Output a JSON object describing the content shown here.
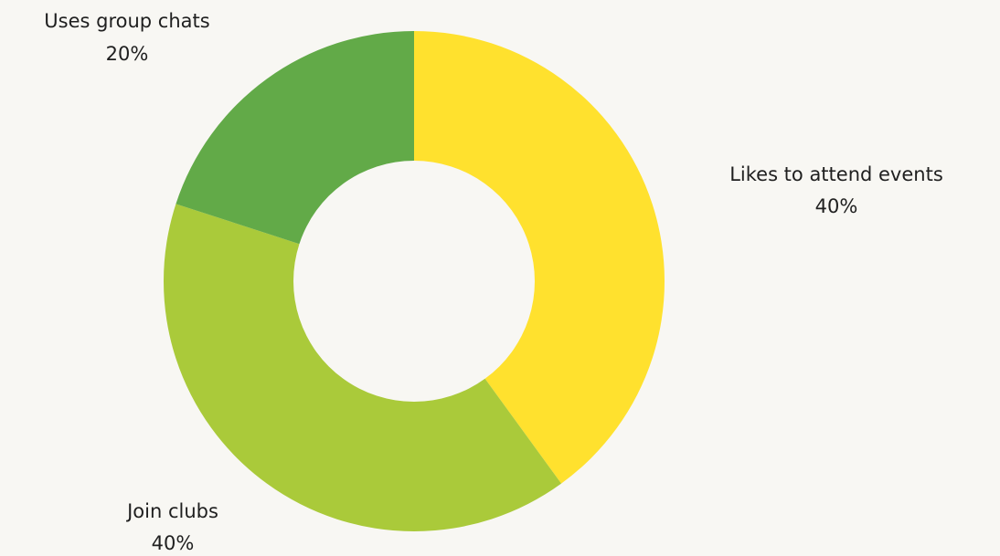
{
  "chart_data": {
    "type": "pie",
    "variant": "donut",
    "title": "",
    "legend": "none",
    "series": [
      {
        "label": "Likes to attend events",
        "value": 40,
        "value_label": "40%",
        "color": "#ffe12e"
      },
      {
        "label": "Join clubs",
        "value": 40,
        "value_label": "40%",
        "color": "#aaca3a"
      },
      {
        "label": "Uses group chats",
        "value": 20,
        "value_label": "20%",
        "color": "#62aa48"
      }
    ]
  },
  "background_color": "#f8f7f3"
}
